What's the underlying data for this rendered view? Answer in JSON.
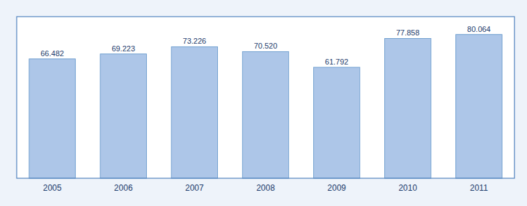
{
  "chart_data": {
    "type": "bar",
    "categories": [
      "2005",
      "2006",
      "2007",
      "2008",
      "2009",
      "2010",
      "2011"
    ],
    "values": [
      66.482,
      69.223,
      73.226,
      70.52,
      61.792,
      77.858,
      80.064
    ],
    "value_labels": [
      "66.482",
      "69.223",
      "73.226",
      "70.520",
      "61.792",
      "77.858",
      "80.064"
    ],
    "color": "#adc6e8",
    "ylim": [
      0,
      90
    ],
    "data_labels": true,
    "tick_labels": "x",
    "grid": false
  }
}
